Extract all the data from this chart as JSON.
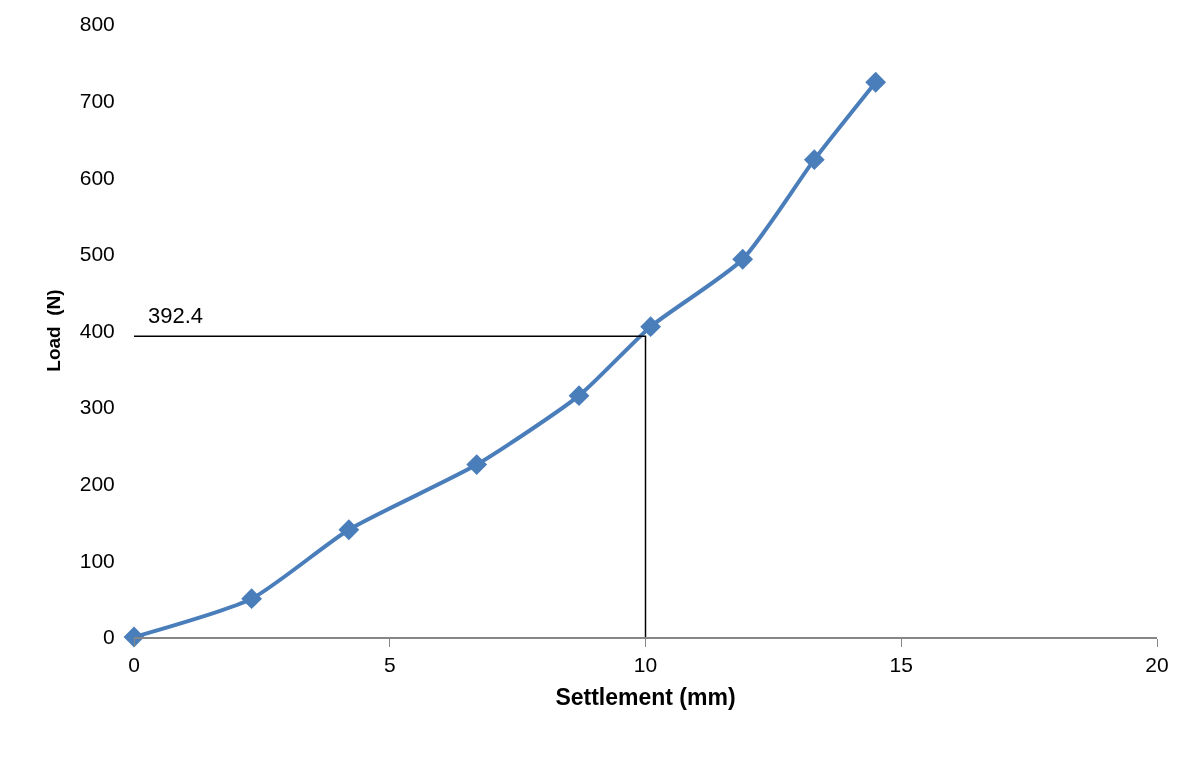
{
  "chart_data": {
    "type": "line",
    "xlabel": "Settlement (mm)",
    "ylabel": "Load  (N)",
    "xlim": [
      0,
      20
    ],
    "xticks": [
      0,
      5,
      10,
      15,
      20
    ],
    "ylim": [
      0,
      800
    ],
    "yticks": [
      0,
      100,
      200,
      300,
      400,
      500,
      600,
      700,
      800
    ],
    "grid": false,
    "series": [
      {
        "color": "#4a7ebb",
        "marker": "diamond",
        "line_style": "solid",
        "x": [
          0,
          2.3,
          4.2,
          6.7,
          8.7,
          10.1,
          11.9,
          13.3,
          14.5
        ],
        "values": [
          0,
          50,
          140,
          225,
          315,
          405,
          493,
          623,
          724
        ]
      },
      {
        "type": "line",
        "color": "#000000",
        "marker": "none",
        "line_style": "solid",
        "x": [
          0,
          10,
          10
        ],
        "values": [
          392.4,
          392.4,
          0
        ]
      }
    ],
    "annotations": [
      {
        "text": "392.4",
        "x": 0,
        "y": 392.4
      }
    ]
  }
}
